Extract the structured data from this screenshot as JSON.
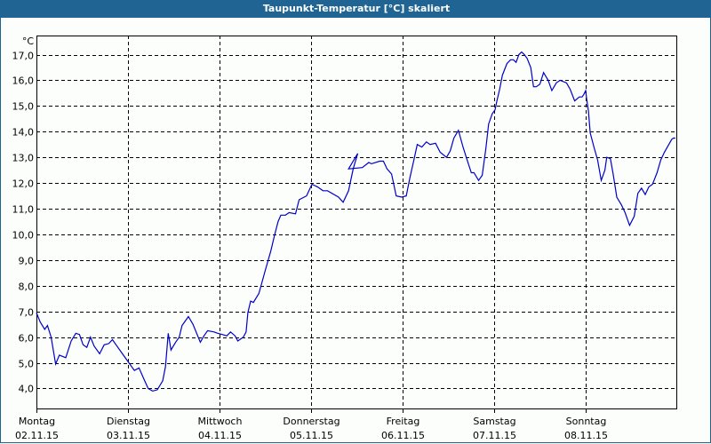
{
  "window": {
    "title": "Taupunkt-Temperatur [°C] skaliert",
    "titlebar_color": "#1f6492",
    "background_color": "#fcfefc"
  },
  "chart_data": {
    "type": "line",
    "title": "Taupunkt-Temperatur [°C] skaliert",
    "xlabel": "",
    "ylabel": "°C",
    "y_unit": "°C",
    "ylim": [
      3.2,
      17.7
    ],
    "yticks": [
      4.0,
      5.0,
      6.0,
      7.0,
      8.0,
      9.0,
      10.0,
      11.0,
      12.0,
      13.0,
      14.0,
      15.0,
      16.0,
      17.0
    ],
    "ytick_labels": [
      "4,0",
      "5,0",
      "6,0",
      "7,0",
      "8,0",
      "9,0",
      "10,0",
      "11,0",
      "12,0",
      "13,0",
      "14,0",
      "15,0",
      "16,0",
      "17,0"
    ],
    "xlim": [
      0,
      7
    ],
    "categories": [
      {
        "day": "Montag",
        "date": "02.11.15"
      },
      {
        "day": "Dienstag",
        "date": "03.11.15"
      },
      {
        "day": "Mittwoch",
        "date": "04.11.15"
      },
      {
        "day": "Donnerstag",
        "date": "05.11.15"
      },
      {
        "day": "Freitag",
        "date": "06.11.15"
      },
      {
        "day": "Samstag",
        "date": "07.11.15"
      },
      {
        "day": "Sonntag",
        "date": "08.11.15"
      }
    ],
    "grid": {
      "horizontal": true,
      "vertical": true,
      "style": "dashed"
    },
    "legend": null,
    "series": [
      {
        "name": "Taupunkt-Temperatur",
        "color": "#0000c8",
        "x_days": [
          0.0,
          0.04,
          0.09,
          0.12,
          0.16,
          0.21,
          0.25,
          0.32,
          0.38,
          0.43,
          0.47,
          0.51,
          0.55,
          0.59,
          0.63,
          0.69,
          0.74,
          0.79,
          0.83,
          0.87,
          0.95,
          1.0,
          1.07,
          1.12,
          1.17,
          1.22,
          1.27,
          1.32,
          1.38,
          1.41,
          1.44,
          1.47,
          1.52,
          1.56,
          1.59,
          1.66,
          1.71,
          1.79,
          1.83,
          1.87,
          1.94,
          1.98,
          2.03,
          2.08,
          2.12,
          2.17,
          2.2,
          2.26,
          2.29,
          2.31,
          2.34,
          2.37,
          2.43,
          2.5,
          2.56,
          2.6,
          2.64,
          2.67,
          2.72,
          2.76,
          2.83,
          2.87,
          2.95,
          3.01,
          3.07,
          3.13,
          3.18,
          3.3,
          3.35,
          3.41,
          3.46,
          3.51,
          3.41,
          3.56,
          3.63,
          3.66,
          3.75,
          3.79,
          3.83,
          3.88,
          3.93,
          3.99,
          4.04,
          4.08,
          4.12,
          4.16,
          4.21,
          4.26,
          4.3,
          4.36,
          4.41,
          4.48,
          4.52,
          4.56,
          4.61,
          4.66,
          4.7,
          4.75,
          4.78,
          4.83,
          4.87,
          4.91,
          4.94,
          4.98,
          5.01,
          5.03,
          5.06,
          5.09,
          5.14,
          5.18,
          5.21,
          5.24,
          5.27,
          5.3,
          5.33,
          5.36,
          5.4,
          5.43,
          5.46,
          5.5,
          5.54,
          5.59,
          5.63,
          5.68,
          5.72,
          5.79,
          5.83,
          5.88,
          5.93,
          5.96,
          5.98,
          6.0,
          6.01,
          6.03,
          6.05,
          6.09,
          6.13,
          6.17,
          6.21,
          6.23,
          6.27,
          6.3,
          6.34,
          6.39,
          6.43,
          6.48,
          6.53,
          6.57,
          6.61,
          6.65,
          6.69,
          6.73,
          6.78,
          6.82,
          6.86,
          6.9,
          6.94,
          6.96,
          6.98
        ],
        "values": [
          6.95,
          6.6,
          6.3,
          6.45,
          6.0,
          4.95,
          5.3,
          5.2,
          5.85,
          6.15,
          6.1,
          5.7,
          5.6,
          6.0,
          5.65,
          5.35,
          5.7,
          5.75,
          5.9,
          5.7,
          5.3,
          5.05,
          4.7,
          4.8,
          4.4,
          4.0,
          3.9,
          3.95,
          4.3,
          4.85,
          6.15,
          5.5,
          5.8,
          6.0,
          6.45,
          6.8,
          6.5,
          5.8,
          6.05,
          6.25,
          6.2,
          6.15,
          6.1,
          6.05,
          6.2,
          6.05,
          5.85,
          6.0,
          6.2,
          6.95,
          7.4,
          7.35,
          7.7,
          8.6,
          9.35,
          9.95,
          10.5,
          10.75,
          10.75,
          10.85,
          10.8,
          11.35,
          11.5,
          11.95,
          11.85,
          11.7,
          11.7,
          11.45,
          11.25,
          11.7,
          12.55,
          13.15,
          12.55,
          12.6,
          12.8,
          12.75,
          12.85,
          12.85,
          12.55,
          12.35,
          11.5,
          11.45,
          11.5,
          12.2,
          12.85,
          13.5,
          13.4,
          13.6,
          13.5,
          13.55,
          13.2,
          13.0,
          13.25,
          13.75,
          14.05,
          13.4,
          12.95,
          12.4,
          12.4,
          12.1,
          12.3,
          13.35,
          14.3,
          14.7,
          14.85,
          15.2,
          15.65,
          16.2,
          16.65,
          16.8,
          16.8,
          16.7,
          17.0,
          17.1,
          17.0,
          16.85,
          16.5,
          15.75,
          15.75,
          15.85,
          16.3,
          16.0,
          15.6,
          15.9,
          16.0,
          15.9,
          15.65,
          15.2,
          15.35,
          15.35,
          15.45,
          15.6,
          15.3,
          14.8,
          13.95,
          13.4,
          12.9,
          12.1,
          12.5,
          13.0,
          12.95,
          12.35,
          11.45,
          11.15,
          10.85,
          10.35,
          10.7,
          11.6,
          11.8,
          11.55,
          11.85,
          11.95,
          12.4,
          12.9,
          13.2,
          13.45,
          13.7,
          13.75,
          13.75,
          13.65,
          14.0,
          14.0,
          13.6,
          13.2
        ]
      }
    ]
  }
}
